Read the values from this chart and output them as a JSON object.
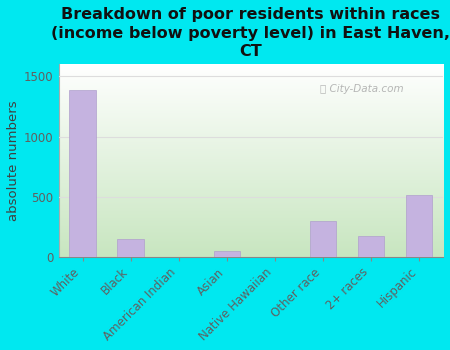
{
  "title": "Breakdown of poor residents within races\n(income below poverty level) in East Haven,\nCT",
  "ylabel": "absolute numbers",
  "categories": [
    "White",
    "Black",
    "American Indian",
    "Asian",
    "Native Hawaiian",
    "Other race",
    "2+ races",
    "Hispanic"
  ],
  "values": [
    1390,
    150,
    0,
    50,
    0,
    300,
    175,
    510
  ],
  "bar_color": "#c5b3e0",
  "bar_edge_color": "#b0a0cc",
  "background_color": "#00e8f0",
  "grid_color": "#dddddd",
  "yticks": [
    0,
    500,
    1000,
    1500
  ],
  "ylim": [
    0,
    1600
  ],
  "title_fontsize": 11.5,
  "ylabel_fontsize": 9.5,
  "tick_fontsize": 8.5,
  "watermark": "City-Data.com",
  "plot_bg_gradient_top": "#c8e6c0",
  "plot_bg_gradient_bottom": "#ffffff"
}
